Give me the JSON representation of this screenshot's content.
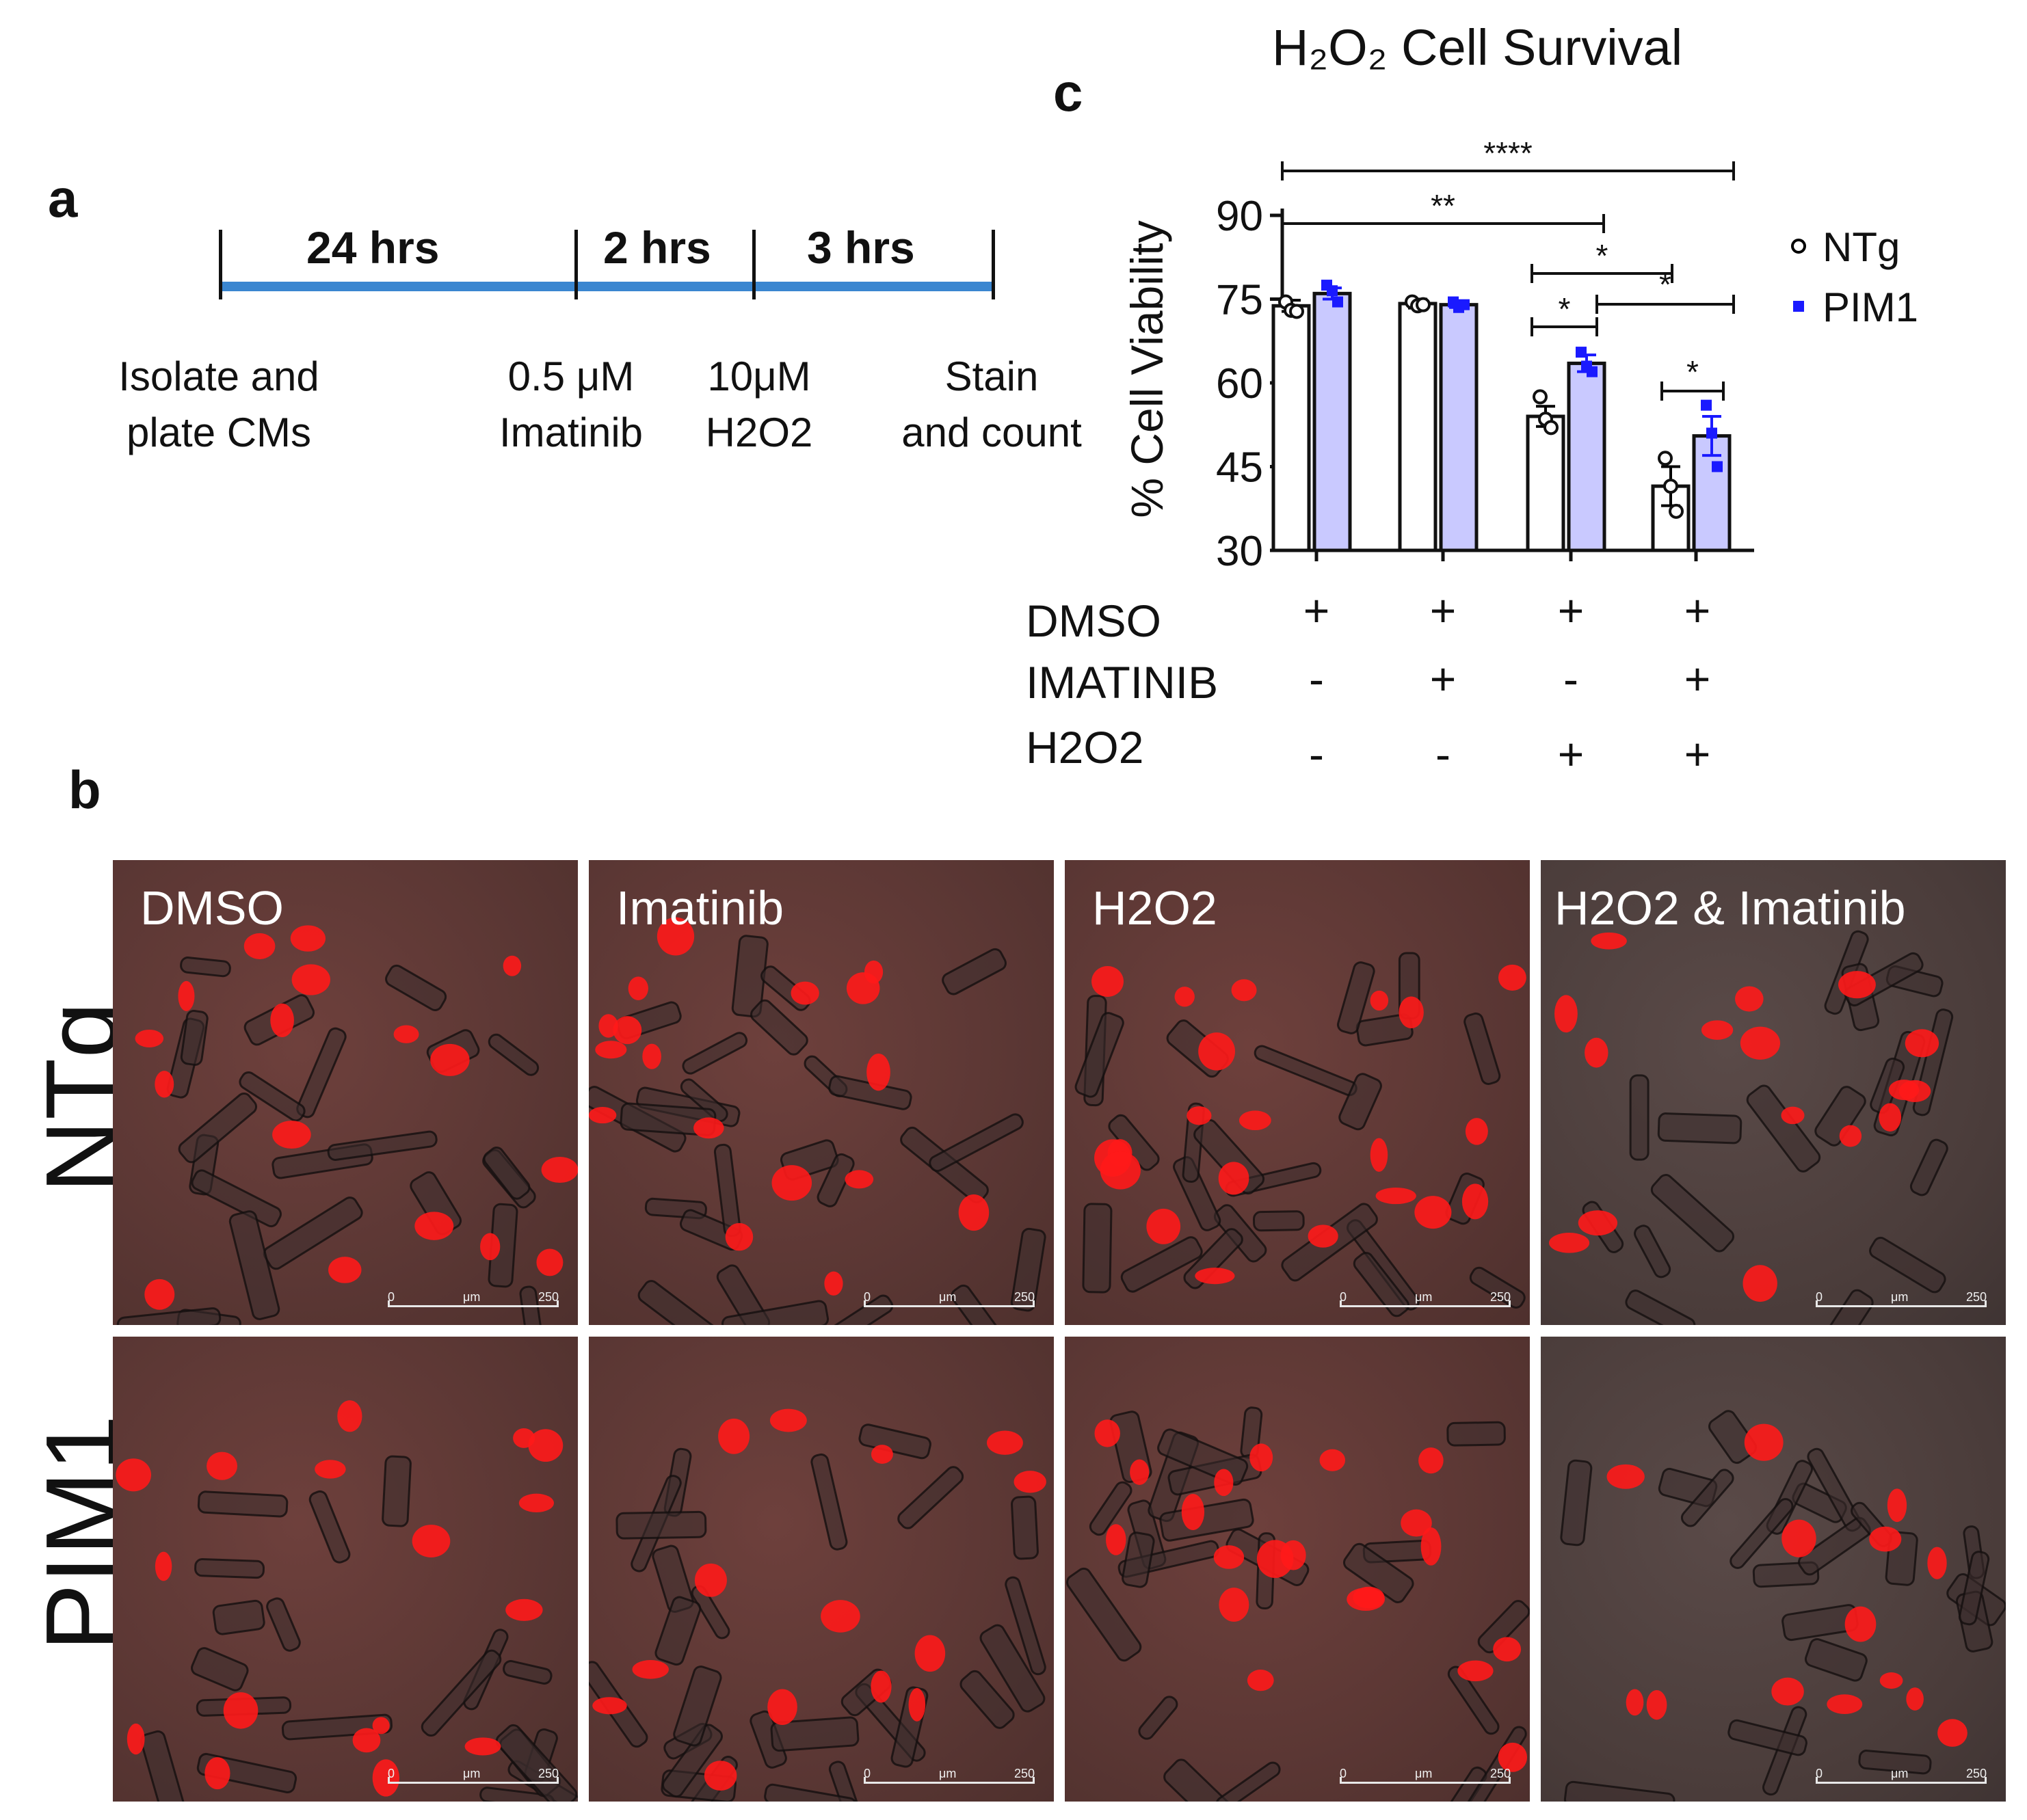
{
  "panels": {
    "a_label": "a",
    "b_label": "b",
    "c_label": "c"
  },
  "timeline": {
    "segments": [
      "24 hrs",
      "2 hrs",
      "3 hrs"
    ],
    "steps": [
      {
        "line1": "Isolate and",
        "line2": "plate CMs"
      },
      {
        "line1": "0.5 μM",
        "line2": "Imatinib"
      },
      {
        "line1": "10μM",
        "line2": "H2O2"
      },
      {
        "line1": "Stain",
        "line2": "and count"
      }
    ],
    "color": "#3a86d0"
  },
  "micrographs": {
    "rows": [
      "NTg",
      "PIM1"
    ],
    "columns": [
      "DMSO",
      "Imatinib",
      "H2O2",
      "H2O2 & Imatinib"
    ],
    "scalebar": {
      "start": "0",
      "unit": "μm",
      "end": "250"
    }
  },
  "chart_data": {
    "type": "bar",
    "title": "H₂O₂  Cell  Survival",
    "ylabel": "% Cell Viability",
    "xlabel": "",
    "ylim": [
      30,
      90
    ],
    "yticks": [
      30,
      45,
      60,
      75,
      90
    ],
    "categories": [
      "DMSO",
      "DMSO+Imatinib",
      "DMSO+H2O2",
      "DMSO+Imatinib+H2O2"
    ],
    "series": [
      {
        "name": "NTg",
        "color": "#000000",
        "fill": "#ffffff",
        "values": [
          73.8,
          74.2,
          54.0,
          41.5
        ],
        "errors": [
          1.0,
          0.8,
          1.8,
          3.5
        ],
        "points": [
          [
            74.5,
            73.0,
            72.8
          ],
          [
            74.5,
            73.8,
            74.0
          ],
          [
            57.5,
            53.5,
            52.0
          ],
          [
            46.5,
            41.5,
            37.0
          ]
        ]
      },
      {
        "name": "PIM1",
        "color": "#1a1aff",
        "fill": "#c9c9ff",
        "values": [
          76.0,
          74.0,
          63.5,
          50.5
        ],
        "errors": [
          1.0,
          0.5,
          1.5,
          3.5
        ],
        "points": [
          [
            77.5,
            76.5,
            74.5
          ],
          [
            74.5,
            73.5,
            74.0
          ],
          [
            65.5,
            63.0,
            62.0
          ],
          [
            56.0,
            51.0,
            45.0
          ]
        ]
      }
    ],
    "significance": [
      {
        "label": "****"
      },
      {
        "label": "**"
      },
      {
        "label": "*"
      },
      {
        "label": "*"
      },
      {
        "label": "*"
      },
      {
        "label": "*"
      }
    ],
    "treatments": [
      {
        "name": "DMSO",
        "signs": [
          "+",
          "+",
          "+",
          "+"
        ]
      },
      {
        "name": "IMATINIB",
        "signs": [
          "-",
          "+",
          "-",
          "+"
        ]
      },
      {
        "name": "H2O2",
        "signs": [
          "-",
          "-",
          "+",
          "+"
        ]
      }
    ],
    "legend": [
      {
        "label": "NTg",
        "color": "#000000"
      },
      {
        "label": "PIM1",
        "color": "#1a1aff"
      }
    ]
  }
}
